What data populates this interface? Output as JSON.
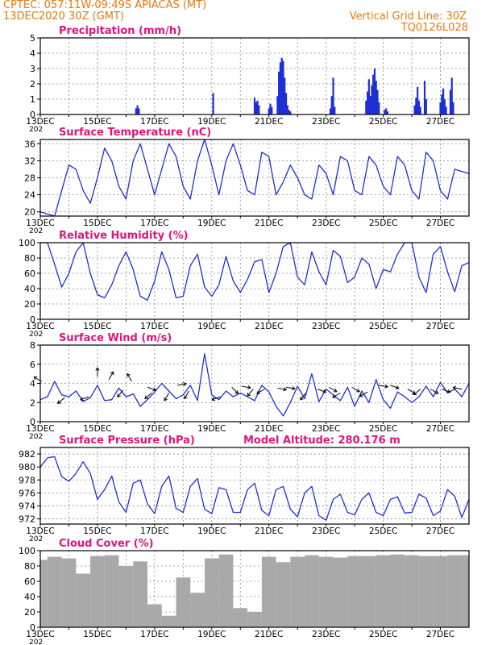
{
  "header": {
    "station": "CPTEC:  057:11W-09:49S  APIACAS (MT)",
    "run": "13DEC2020 30Z (GMT)",
    "grid_note": "Vertical Grid Line: 30Z",
    "model": "TQ0126L028"
  },
  "colors": {
    "header": "#e8780c",
    "title": "#e0147a",
    "line": "#1f2fd6",
    "bar": "#1f2fd6",
    "cloud": "#a9a9a9",
    "grid": "#888888"
  },
  "x_tick_labels": [
    "13DEC",
    "15DEC",
    "17DEC",
    "19DEC",
    "21DEC",
    "23DEC",
    "25DEC",
    "27DEC"
  ],
  "x_year_fragment": "202",
  "panels": {
    "precip": {
      "title": "Precipitation (mm/h)"
    },
    "temp": {
      "title": "Surface Temperature (nC)"
    },
    "humidity": {
      "title": "Relative Humidity (%)"
    },
    "wind": {
      "title": "Surface Wind (m/s)"
    },
    "pressure": {
      "title": "Surface Pressure (hPa)",
      "altitude": "Model Altitude: 280.176 m"
    },
    "cloud": {
      "title": "Cloud Cover (%)"
    }
  },
  "chart_data": [
    {
      "id": "precip",
      "type": "bar",
      "title": "Precipitation (mm/h)",
      "ylim": [
        0,
        5
      ],
      "yticks": [
        0,
        1,
        2,
        3,
        4,
        5
      ],
      "xlim": [
        0,
        15
      ],
      "x": [
        3.35,
        3.4,
        3.45,
        6.05,
        7.5,
        7.55,
        7.6,
        7.65,
        8.0,
        8.05,
        8.1,
        8.3,
        8.35,
        8.4,
        8.45,
        8.5,
        8.55,
        8.6,
        8.65,
        8.7,
        8.75,
        10.15,
        10.2,
        10.25,
        10.3,
        11.4,
        11.45,
        11.5,
        11.55,
        11.6,
        11.65,
        11.7,
        11.75,
        11.8,
        11.85,
        12.05,
        12.1,
        12.15,
        13.1,
        13.15,
        13.2,
        13.25,
        13.3,
        13.45,
        13.5,
        14.0,
        14.05,
        14.1,
        14.15,
        14.2,
        14.35,
        14.4,
        14.45
      ],
      "values": [
        0.4,
        0.6,
        0.4,
        1.4,
        1.1,
        0.8,
        0.9,
        0.6,
        0.4,
        0.7,
        0.5,
        1.2,
        2.8,
        3.4,
        3.7,
        3.5,
        2.4,
        1.4,
        0.6,
        0.3,
        0.2,
        0.4,
        1.2,
        2.4,
        0.5,
        0.9,
        1.5,
        2.3,
        1.2,
        1.9,
        2.6,
        3.0,
        2.2,
        1.6,
        0.8,
        0.3,
        0.4,
        0.2,
        0.6,
        1.1,
        1.8,
        0.9,
        0.5,
        2.2,
        1.0,
        0.8,
        1.3,
        1.7,
        1.0,
        0.5,
        1.6,
        2.4,
        0.8
      ]
    },
    {
      "id": "temp",
      "type": "line",
      "title": "Surface Temperature (nC)",
      "ylim": [
        19,
        37
      ],
      "yticks": [
        20,
        24,
        28,
        32,
        36
      ],
      "xlim": [
        0,
        15
      ],
      "x": [
        0,
        0.25,
        0.5,
        0.75,
        1.0,
        1.25,
        1.5,
        1.75,
        2.0,
        2.25,
        2.5,
        2.75,
        3.0,
        3.25,
        3.5,
        3.75,
        4.0,
        4.25,
        4.5,
        4.75,
        5.0,
        5.25,
        5.5,
        5.75,
        6.0,
        6.25,
        6.5,
        6.75,
        7.0,
        7.25,
        7.5,
        7.75,
        8.0,
        8.25,
        8.5,
        8.75,
        9.0,
        9.25,
        9.5,
        9.75,
        10.0,
        10.25,
        10.5,
        10.75,
        11.0,
        11.25,
        11.5,
        11.75,
        12.0,
        12.25,
        12.5,
        12.75,
        13.0,
        13.25,
        13.5,
        13.75,
        14.0,
        14.25,
        14.5,
        14.75,
        15.0
      ],
      "values": [
        20,
        19.5,
        19,
        25,
        31,
        30,
        25,
        22,
        28,
        35,
        32,
        26,
        23,
        32,
        36,
        30,
        24,
        30,
        36,
        33,
        26,
        23,
        32,
        37,
        31,
        24,
        32,
        36,
        31,
        25,
        24,
        34,
        33,
        24,
        27,
        31,
        28,
        24,
        23,
        31,
        29,
        24,
        33,
        32,
        25,
        24,
        33,
        31,
        26,
        24,
        33,
        31,
        25,
        23,
        34,
        32,
        25,
        23,
        30,
        29.5,
        29
      ]
    },
    {
      "id": "humidity",
      "type": "line",
      "title": "Relative Humidity (%)",
      "ylim": [
        0,
        100
      ],
      "yticks": [
        0,
        20,
        40,
        60,
        80,
        100
      ],
      "xlim": [
        0,
        15
      ],
      "x": [
        0,
        0.25,
        0.5,
        0.75,
        1.0,
        1.25,
        1.5,
        1.75,
        2.0,
        2.25,
        2.5,
        2.75,
        3.0,
        3.25,
        3.5,
        3.75,
        4.0,
        4.25,
        4.5,
        4.75,
        5.0,
        5.25,
        5.5,
        5.75,
        6.0,
        6.25,
        6.5,
        6.75,
        7.0,
        7.25,
        7.5,
        7.75,
        8.0,
        8.25,
        8.5,
        8.75,
        9.0,
        9.25,
        9.5,
        9.75,
        10.0,
        10.25,
        10.5,
        10.75,
        11.0,
        11.25,
        11.5,
        11.75,
        12.0,
        12.25,
        12.5,
        12.75,
        13.0,
        13.25,
        13.5,
        13.75,
        14.0,
        14.25,
        14.5,
        14.75,
        15.0
      ],
      "values": [
        100,
        100,
        72,
        42,
        60,
        88,
        100,
        60,
        32,
        28,
        45,
        70,
        88,
        65,
        30,
        25,
        50,
        88,
        65,
        28,
        30,
        70,
        85,
        42,
        30,
        45,
        82,
        50,
        35,
        52,
        75,
        78,
        35,
        60,
        95,
        100,
        55,
        45,
        88,
        62,
        45,
        90,
        82,
        48,
        55,
        80,
        72,
        40,
        65,
        62,
        85,
        100,
        100,
        55,
        35,
        85,
        95,
        62,
        36,
        70,
        74
      ]
    },
    {
      "id": "wind",
      "type": "line",
      "title": "Surface Wind (m/s)",
      "ylim": [
        0,
        8
      ],
      "yticks": [
        0,
        2,
        4,
        6,
        8
      ],
      "xlim": [
        0,
        15
      ],
      "x": [
        0,
        0.25,
        0.5,
        0.75,
        1.0,
        1.25,
        1.5,
        1.75,
        2.0,
        2.25,
        2.5,
        2.75,
        3.0,
        3.25,
        3.5,
        3.75,
        4.0,
        4.25,
        4.5,
        4.75,
        5.0,
        5.25,
        5.5,
        5.75,
        6.0,
        6.25,
        6.5,
        6.75,
        7.0,
        7.25,
        7.5,
        7.75,
        8.0,
        8.25,
        8.5,
        8.75,
        9.0,
        9.25,
        9.5,
        9.75,
        10.0,
        10.25,
        10.5,
        10.75,
        11.0,
        11.25,
        11.5,
        11.75,
        12.0,
        12.25,
        12.5,
        12.75,
        13.0,
        13.25,
        13.5,
        13.75,
        14.0,
        14.25,
        14.5,
        14.75,
        15.0
      ],
      "values": [
        2.3,
        2.6,
        4.2,
        2.8,
        2.6,
        3.2,
        2.1,
        2.5,
        3.8,
        2.2,
        2.3,
        3.5,
        2.6,
        2.9,
        1.6,
        2.3,
        3.1,
        4.0,
        3.2,
        2.4,
        2.8,
        3.8,
        2.2,
        7.1,
        2.8,
        2.3,
        3.2,
        2.6,
        3.0,
        2.6,
        2.2,
        3.8,
        3.1,
        1.6,
        0.6,
        2.0,
        3.7,
        2.4,
        5.0,
        2.1,
        3.4,
        2.8,
        2.2,
        3.6,
        1.6,
        3.2,
        2.0,
        4.4,
        2.3,
        1.4,
        3.1,
        2.6,
        2.0,
        2.6,
        3.7,
        2.6,
        4.1,
        3.0,
        3.4,
        2.6,
        4.0
      ],
      "barbs": [
        {
          "x": 0.05,
          "speed": 4.2,
          "dir_deg": 150
        },
        {
          "x": 0.85,
          "speed": 2.5,
          "dir_deg": 220
        },
        {
          "x": 1.7,
          "speed": 2.6,
          "dir_deg": 200
        },
        {
          "x": 2.0,
          "speed": 4.7,
          "dir_deg": 90
        },
        {
          "x": 2.4,
          "speed": 4.4,
          "dir_deg": 60
        },
        {
          "x": 2.9,
          "speed": 3.3,
          "dir_deg": 230
        },
        {
          "x": 3.2,
          "speed": 4.2,
          "dir_deg": 120
        },
        {
          "x": 3.75,
          "speed": 3.6,
          "dir_deg": -20
        },
        {
          "x": 3.9,
          "speed": 3.0,
          "dir_deg": 220
        },
        {
          "x": 4.5,
          "speed": 3.0,
          "dir_deg": 240
        },
        {
          "x": 4.8,
          "speed": 3.8,
          "dir_deg": 10
        },
        {
          "x": 5.2,
          "speed": 3.2,
          "dir_deg": 240
        },
        {
          "x": 6.3,
          "speed": 2.6,
          "dir_deg": 200
        },
        {
          "x": 6.7,
          "speed": 3.6,
          "dir_deg": -45
        },
        {
          "x": 7.05,
          "speed": 3.7,
          "dir_deg": -10
        },
        {
          "x": 7.45,
          "speed": 3.4,
          "dir_deg": 230
        },
        {
          "x": 7.85,
          "speed": 3.4,
          "dir_deg": 210
        },
        {
          "x": 8.3,
          "speed": 3.5,
          "dir_deg": -10
        },
        {
          "x": 8.6,
          "speed": 3.6,
          "dir_deg": -10
        },
        {
          "x": 9.3,
          "speed": 3.0,
          "dir_deg": 230
        },
        {
          "x": 9.7,
          "speed": 3.4,
          "dir_deg": -20
        },
        {
          "x": 10.1,
          "speed": 3.6,
          "dir_deg": -30
        },
        {
          "x": 10.5,
          "speed": 3.0,
          "dir_deg": 210
        },
        {
          "x": 10.9,
          "speed": 3.6,
          "dir_deg": -30
        },
        {
          "x": 11.45,
          "speed": 3.1,
          "dir_deg": 210
        },
        {
          "x": 11.85,
          "speed": 3.8,
          "dir_deg": -10
        },
        {
          "x": 12.25,
          "speed": 3.8,
          "dir_deg": -20
        },
        {
          "x": 12.85,
          "speed": 3.4,
          "dir_deg": -30
        },
        {
          "x": 13.3,
          "speed": 3.4,
          "dir_deg": 220
        },
        {
          "x": 13.65,
          "speed": 3.4,
          "dir_deg": -30
        },
        {
          "x": 14.05,
          "speed": 3.4,
          "dir_deg": -20
        },
        {
          "x": 14.75,
          "speed": 3.4,
          "dir_deg": 170
        }
      ]
    },
    {
      "id": "pressure",
      "type": "line",
      "title": "Surface Pressure (hPa)",
      "ylim": [
        971.2,
        983
      ],
      "yticks": [
        972,
        974,
        976,
        978,
        980,
        982
      ],
      "xlim": [
        0,
        15
      ],
      "x": [
        0,
        0.25,
        0.5,
        0.75,
        1.0,
        1.25,
        1.5,
        1.75,
        2.0,
        2.25,
        2.5,
        2.75,
        3.0,
        3.25,
        3.5,
        3.75,
        4.0,
        4.25,
        4.5,
        4.75,
        5.0,
        5.25,
        5.5,
        5.75,
        6.0,
        6.25,
        6.5,
        6.75,
        7.0,
        7.25,
        7.5,
        7.75,
        8.0,
        8.25,
        8.5,
        8.75,
        9.0,
        9.25,
        9.5,
        9.75,
        10.0,
        10.25,
        10.5,
        10.75,
        11.0,
        11.25,
        11.5,
        11.75,
        12.0,
        12.25,
        12.5,
        12.75,
        13.0,
        13.25,
        13.5,
        13.75,
        14.0,
        14.25,
        14.5,
        14.75,
        15.0
      ],
      "values": [
        980,
        981.4,
        981.6,
        978.5,
        977.8,
        979,
        980.8,
        979,
        975,
        976.5,
        978.6,
        974.6,
        973,
        977.5,
        978,
        974.3,
        972.8,
        977,
        978.6,
        973.6,
        973,
        977,
        978.2,
        973.5,
        972.8,
        976.8,
        976.5,
        973,
        973,
        976.5,
        977.5,
        973.3,
        972.5,
        976.5,
        977,
        973.5,
        972.3,
        976,
        977,
        972.5,
        971.8,
        975,
        975.8,
        973,
        972.6,
        975,
        976,
        973,
        972.5,
        975,
        975.4,
        972.9,
        973,
        975.8,
        975.2,
        972.5,
        973.2,
        976.5,
        975.5,
        972.2,
        975
      ]
    },
    {
      "id": "cloud",
      "type": "bar",
      "title": "Cloud Cover (%)",
      "ylim": [
        0,
        100
      ],
      "yticks": [
        0,
        20,
        40,
        60,
        80,
        100
      ],
      "xlim": [
        0,
        15
      ],
      "x": [
        0,
        0.5,
        1.0,
        1.5,
        2.0,
        2.5,
        3.0,
        3.5,
        4.0,
        4.5,
        5.0,
        5.5,
        6.0,
        6.5,
        7.0,
        7.5,
        8.0,
        8.5,
        9.0,
        9.5,
        10.0,
        10.5,
        11.0,
        11.5,
        12.0,
        12.5,
        13.0,
        13.5,
        14.0,
        14.5,
        15.0
      ],
      "values": [
        88,
        92,
        90,
        70,
        93,
        94,
        80,
        86,
        30,
        15,
        65,
        45,
        90,
        95,
        25,
        20,
        92,
        85,
        92,
        94,
        92,
        91,
        93,
        93,
        94,
        95,
        94,
        93,
        93,
        94,
        94
      ]
    }
  ]
}
